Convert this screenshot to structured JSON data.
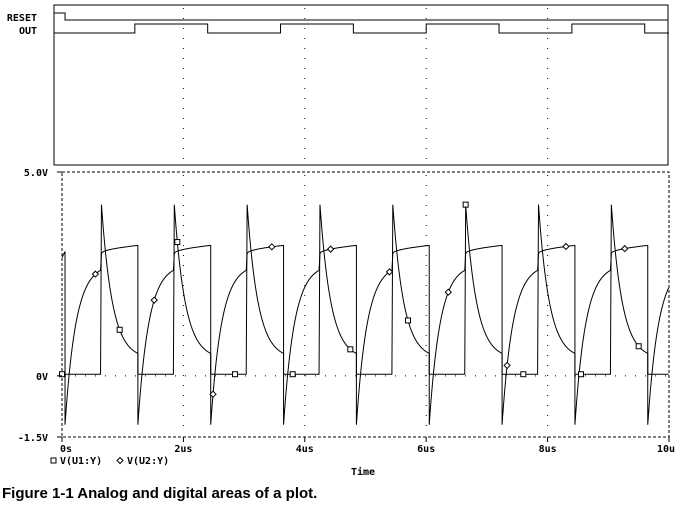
{
  "caption": "Figure 1-1  Analog and digital areas of a plot.",
  "chart_data": [
    {
      "type": "digital-timing",
      "signals": [
        {
          "name": "RESET",
          "transitions_us": [
            0,
            0.05
          ],
          "levels": [
            1,
            0
          ]
        },
        {
          "name": "OUT",
          "transitions_us": [
            0,
            1.2,
            2.4,
            3.6,
            4.8,
            6.0,
            7.2,
            8.4,
            9.6,
            10.0
          ],
          "levels": [
            0,
            1,
            0,
            1,
            0,
            1,
            0,
            1,
            0
          ]
        }
      ],
      "xlim": [
        0,
        10
      ]
    },
    {
      "type": "line",
      "xlabel": "Time",
      "x_unit": "us",
      "xlim": [
        0,
        10
      ],
      "x_ticks": [
        0,
        2,
        4,
        6,
        8,
        10
      ],
      "x_tick_labels": [
        "0s",
        "2us",
        "4us",
        "6us",
        "8us",
        "10us"
      ],
      "ylim": [
        -1.5,
        5.0
      ],
      "y_ticks": [
        5.0,
        0,
        -1.5
      ],
      "y_tick_labels": [
        "5.0V",
        "0V",
        "-1.5V"
      ],
      "grid": "dotted",
      "legend_position": "bottom-left",
      "period_us": 1.2,
      "series": [
        {
          "name": "V(U1:Y)",
          "marker": "square",
          "waveform": {
            "phase1": {
              "duration_us": 0.6,
              "start_V": 0.04,
              "end_V": 0.04
            },
            "edge_up": {
              "to_V": 4.2
            },
            "phase2": {
              "duration_us": 0.6,
              "start_V": 4.2,
              "decay_to_V": 0.55
            },
            "edge_down": {
              "to_V": -0.9
            }
          }
        },
        {
          "name": "V(U2:Y)",
          "marker": "diamond",
          "waveform": {
            "phase1": {
              "duration_us": 0.6,
              "start_V": -1.2,
              "rise_to_V": 2.6
            },
            "edge_up": {
              "to_V": 3.0
            },
            "phase2": {
              "duration_us": 0.6,
              "start_V": 3.0,
              "end_V": 3.2
            },
            "edge_down": {
              "to_V": 0.04
            }
          }
        }
      ]
    }
  ]
}
